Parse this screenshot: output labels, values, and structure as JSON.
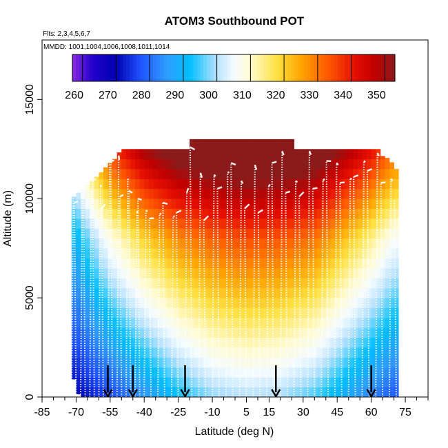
{
  "chart_data": {
    "type": "heatmap",
    "title": "ATOM3 Southbound POT",
    "flights_note": "Flts: 2,3,4,5,6,7",
    "dates_note": "MMDD: 1001,1004,1006,1008,1011,1014",
    "xlabel": "Latitude (deg N)",
    "ylabel": "Altitude (m)",
    "xlim": [
      -85,
      85
    ],
    "ylim": [
      0,
      18000
    ],
    "x_ticks": [
      -85,
      -70,
      -55,
      -40,
      -25,
      -10,
      5,
      15,
      30,
      45,
      60,
      75
    ],
    "x_minor_ticks": [
      -80,
      -75,
      -65,
      -60,
      -50,
      -45,
      -35,
      -30,
      -20,
      -15,
      -5,
      0,
      10,
      20,
      25,
      35,
      40,
      50,
      55,
      65,
      70,
      80,
      85
    ],
    "y_ticks": [
      0,
      5000,
      10000,
      15000
    ],
    "colorbar": {
      "min": 257,
      "max": 353,
      "tick_values": [
        260,
        270,
        280,
        290,
        300,
        310,
        320,
        330,
        340,
        350
      ],
      "line_values": [
        260,
        270,
        280,
        290,
        300,
        310,
        320,
        330,
        340,
        350
      ],
      "stops": [
        {
          "value": 257,
          "color": "#8a2be2"
        },
        {
          "value": 263,
          "color": "#2200cc"
        },
        {
          "value": 270,
          "color": "#0000b0"
        },
        {
          "value": 277,
          "color": "#1e50ff"
        },
        {
          "value": 285,
          "color": "#2f9bff"
        },
        {
          "value": 292,
          "color": "#00bfff"
        },
        {
          "value": 300,
          "color": "#b8e2ff"
        },
        {
          "value": 305,
          "color": "#f4fbff"
        },
        {
          "value": 310,
          "color": "#fffbd0"
        },
        {
          "value": 318,
          "color": "#ffe040"
        },
        {
          "value": 325,
          "color": "#ffa500"
        },
        {
          "value": 333,
          "color": "#ff5a00"
        },
        {
          "value": 341,
          "color": "#e60f00"
        },
        {
          "value": 347,
          "color": "#c00000"
        },
        {
          "value": 353,
          "color": "#8b1a1a"
        }
      ]
    },
    "field_model": {
      "surface_potential_temperature_K": [
        {
          "lat": -70,
          "value": 270
        },
        {
          "lat": -55,
          "value": 276
        },
        {
          "lat": -40,
          "value": 284
        },
        {
          "lat": -25,
          "value": 292
        },
        {
          "lat": -10,
          "value": 298
        },
        {
          "lat": 5,
          "value": 300
        },
        {
          "lat": 20,
          "value": 299
        },
        {
          "lat": 35,
          "value": 295
        },
        {
          "lat": 50,
          "value": 287
        },
        {
          "lat": 60,
          "value": 282
        },
        {
          "lat": 70,
          "value": 278
        }
      ],
      "lapse_K_per_km": [
        {
          "lat": -70,
          "value": 2.5
        },
        {
          "lat": -55,
          "value": 4.0
        },
        {
          "lat": -40,
          "value": 4.5
        },
        {
          "lat": -25,
          "value": 4.5
        },
        {
          "lat": -10,
          "value": 4.3
        },
        {
          "lat": 5,
          "value": 4.3
        },
        {
          "lat": 20,
          "value": 4.3
        },
        {
          "lat": 35,
          "value": 4.4
        },
        {
          "lat": 50,
          "value": 4.2
        },
        {
          "lat": 60,
          "value": 4.0
        },
        {
          "lat": 70,
          "value": 3.5
        }
      ],
      "column_top_m": [
        {
          "lat": -72,
          "value": 10000
        },
        {
          "lat": -70,
          "value": 10200
        },
        {
          "lat": -65,
          "value": 10700
        },
        {
          "lat": -60,
          "value": 11200
        },
        {
          "lat": -56,
          "value": 11700
        },
        {
          "lat": -53,
          "value": 12000
        },
        {
          "lat": -50,
          "value": 12500
        },
        {
          "lat": -20,
          "value": 12500
        },
        {
          "lat": -19,
          "value": 13000
        },
        {
          "lat": 25,
          "value": 13000
        },
        {
          "lat": 26,
          "value": 12500
        },
        {
          "lat": 63,
          "value": 12500
        },
        {
          "lat": 64,
          "value": 12200
        },
        {
          "lat": 68,
          "value": 12000
        },
        {
          "lat": 71,
          "value": 11500
        }
      ],
      "column_bottom_m": [
        {
          "lat": -72,
          "value": 1500
        },
        {
          "lat": -70,
          "value": 300
        },
        {
          "lat": -68,
          "value": 0
        },
        {
          "lat": 71,
          "value": 0
        }
      ]
    },
    "profile_latitudes": [
      -76,
      -74,
      -72,
      -70,
      -68,
      -66,
      -64,
      -62,
      -60,
      -58,
      -56,
      -54,
      -52,
      -50,
      -48,
      -46,
      -44,
      -42,
      -40,
      -37,
      -34,
      -31,
      -28,
      -25,
      -22,
      -19,
      -16,
      -13,
      -10,
      -7,
      -4,
      -1,
      2,
      5,
      8,
      11,
      14,
      17,
      20,
      23,
      26,
      29,
      32,
      35,
      38,
      41,
      44,
      47,
      50,
      53,
      56,
      59,
      62,
      65,
      68,
      71
    ],
    "profile_tops_m": [
      10000,
      9700,
      10100,
      9800,
      10400,
      10600,
      10300,
      11400,
      10700,
      9500,
      11900,
      12100,
      12200,
      10100,
      11000,
      10400,
      9300,
      10000,
      9400,
      9000,
      9200,
      9800,
      9100,
      9300,
      10300,
      12600,
      11300,
      8900,
      11200,
      10500,
      11300,
      11800,
      10900,
      9500,
      11700,
      9300,
      10600,
      11800,
      12400,
      10300,
      10900,
      10100,
      12400,
      10500,
      10900,
      11900,
      11800,
      10800,
      11000,
      11100,
      11900,
      11400,
      12300,
      10800,
      11000,
      9900
    ],
    "arrow_latitudes": [
      -56,
      -45,
      -22,
      18,
      60
    ]
  }
}
